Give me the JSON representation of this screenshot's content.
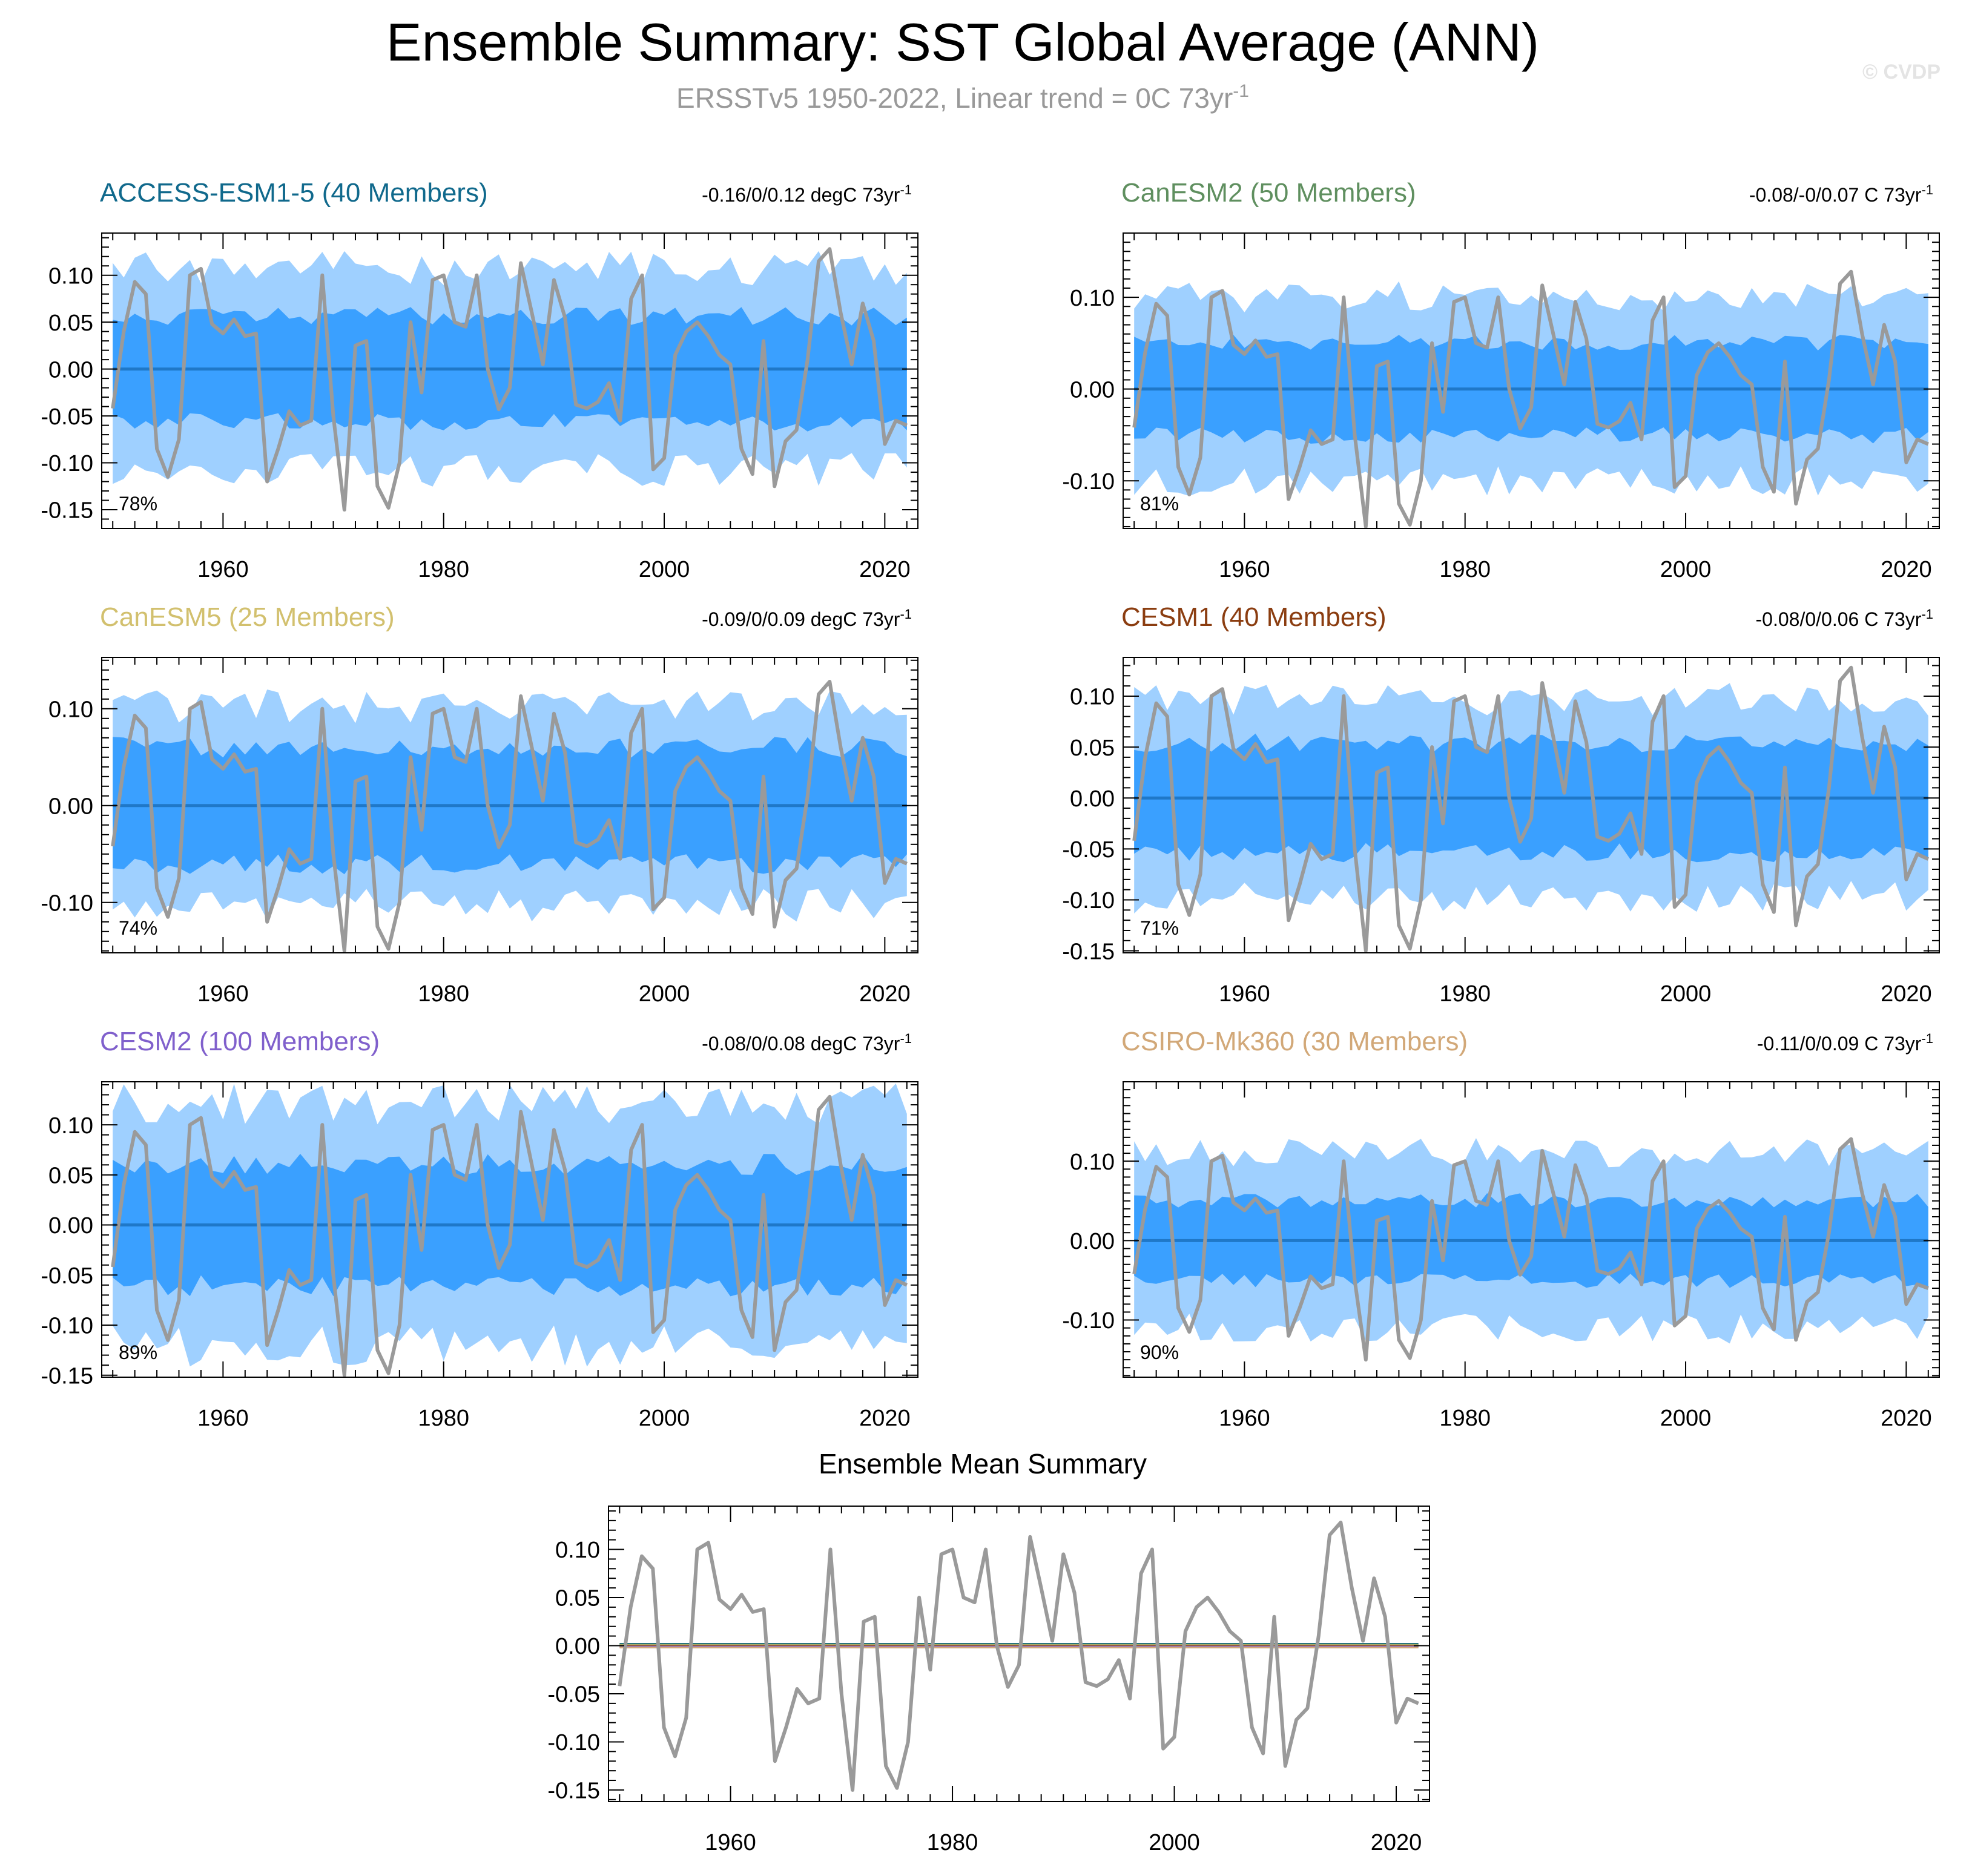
{
  "title": "Ensemble Summary: SST Global Average (ANN)",
  "subtitle_main": "ERSSTv5 1950-2022, Linear trend = 0C 73yr",
  "subtitle_sup": "-1",
  "watermark": "© CVDP",
  "colors": {
    "outer_band": "#9fd0ff",
    "inner_band": "#3aa0ff",
    "mean_line": "#1f78c8",
    "obs_line": "#9a9a9a",
    "title": "#000000",
    "subtitle": "#999999"
  },
  "observations": {
    "name": "ERSSTv5",
    "years": [
      1950,
      1951,
      1952,
      1953,
      1954,
      1955,
      1956,
      1957,
      1958,
      1959,
      1960,
      1961,
      1962,
      1963,
      1964,
      1965,
      1966,
      1967,
      1968,
      1969,
      1970,
      1971,
      1972,
      1973,
      1974,
      1975,
      1976,
      1977,
      1978,
      1979,
      1980,
      1981,
      1982,
      1983,
      1984,
      1985,
      1986,
      1987,
      1988,
      1989,
      1990,
      1991,
      1992,
      1993,
      1994,
      1995,
      1996,
      1997,
      1998,
      1999,
      2000,
      2001,
      2002,
      2003,
      2004,
      2005,
      2006,
      2007,
      2008,
      2009,
      2010,
      2011,
      2012,
      2013,
      2014,
      2015,
      2016,
      2017,
      2018,
      2019,
      2020,
      2021,
      2022
    ],
    "values": [
      -0.042,
      0.04,
      0.093,
      0.08,
      -0.085,
      -0.115,
      -0.075,
      0.1,
      0.107,
      0.048,
      0.038,
      0.053,
      0.035,
      0.038,
      -0.12,
      -0.085,
      -0.045,
      -0.06,
      -0.055,
      0.1,
      -0.05,
      -0.15,
      0.025,
      0.03,
      -0.125,
      -0.148,
      -0.1,
      0.05,
      -0.025,
      0.095,
      0.1,
      0.05,
      0.045,
      0.1,
      0.0,
      -0.043,
      -0.02,
      0.113,
      0.06,
      0.005,
      0.095,
      0.055,
      -0.038,
      -0.042,
      -0.035,
      -0.015,
      -0.055,
      0.075,
      0.1,
      -0.107,
      -0.095,
      0.015,
      0.04,
      0.05,
      0.035,
      0.015,
      0.005,
      -0.085,
      -0.112,
      0.03,
      -0.125,
      -0.077,
      -0.065,
      0.01,
      0.115,
      0.128,
      0.06,
      0.005,
      0.07,
      0.03,
      -0.08,
      -0.055,
      -0.06
    ]
  },
  "panels": [
    {
      "id": "access-esm1-5",
      "label": "ACCESS-ESM1-5 (40 Members)",
      "color": "#10698c",
      "trend": "-0.16/0/0.12 degC 73yr",
      "trend_sup": "-1",
      "percent": "78%",
      "ylim": [
        -0.17,
        0.145
      ],
      "yticks": [
        0.1,
        0.05,
        0.0,
        -0.05,
        -0.1,
        -0.15
      ],
      "ytick_labels": [
        "0.10",
        "0.05",
        "0.00",
        "-0.05",
        "-0.10",
        "-0.15"
      ],
      "inner": 0.058,
      "outer": 0.105,
      "seed": 11
    },
    {
      "id": "canesm2",
      "label": "CanESM2 (50 Members)",
      "color": "#5f8f5f",
      "trend": "-0.08/-0/0.07 C 73yr",
      "trend_sup": "-1",
      "percent": "81%",
      "ylim": [
        -0.152,
        0.17
      ],
      "yticks": [
        0.1,
        0.0,
        -0.1
      ],
      "ytick_labels": [
        "0.10",
        "0.00",
        "-0.10"
      ],
      "inner": 0.052,
      "outer": 0.098,
      "seed": 23
    },
    {
      "id": "canesm5",
      "label": "CanESM5 (25 Members)",
      "color": "#d2c06e",
      "trend": "-0.09/0/0.09 degC 73yr",
      "trend_sup": "-1",
      "percent": "74%",
      "ylim": [
        -0.152,
        0.153
      ],
      "yticks": [
        0.1,
        0.0,
        -0.1
      ],
      "ytick_labels": [
        "0.10",
        "0.00",
        "-0.10"
      ],
      "inner": 0.062,
      "outer": 0.1,
      "seed": 37
    },
    {
      "id": "cesm1",
      "label": "CESM1 (40 Members)",
      "color": "#8b3d10",
      "trend": "-0.08/0/0.06 C 73yr",
      "trend_sup": "-1",
      "percent": "71%",
      "ylim": [
        -0.152,
        0.138
      ],
      "yticks": [
        0.1,
        0.05,
        0.0,
        -0.05,
        -0.1,
        -0.15
      ],
      "ytick_labels": [
        "0.10",
        "0.05",
        "0.00",
        "-0.05",
        "-0.10",
        "-0.15"
      ],
      "inner": 0.055,
      "outer": 0.095,
      "seed": 41
    },
    {
      "id": "cesm2",
      "label": "CESM2 (100 Members)",
      "color": "#8060cc",
      "trend": "-0.08/0/0.08 degC 73yr",
      "trend_sup": "-1",
      "percent": "89%",
      "ylim": [
        -0.152,
        0.143
      ],
      "yticks": [
        0.1,
        0.05,
        0.0,
        -0.05,
        -0.1,
        -0.15
      ],
      "ytick_labels": [
        "0.10",
        "0.05",
        "0.00",
        "-0.05",
        "-0.10",
        "-0.15"
      ],
      "inner": 0.062,
      "outer": 0.118,
      "seed": 53
    },
    {
      "id": "csiro-mk360",
      "label": "CSIRO-Mk360 (30 Members)",
      "color": "#d2a878",
      "trend": "-0.11/0/0.09 C 73yr",
      "trend_sup": "-1",
      "percent": "90%",
      "ylim": [
        -0.172,
        0.2
      ],
      "yticks": [
        0.1,
        0.0,
        -0.1
      ],
      "ytick_labels": [
        "0.10",
        "0.00",
        "-0.10"
      ],
      "inner": 0.052,
      "outer": 0.108,
      "seed": 67
    }
  ],
  "ensemble_mean": {
    "title": "Ensemble Mean Summary",
    "ylim": [
      -0.162,
      0.145
    ],
    "yticks": [
      0.1,
      0.05,
      0.0,
      -0.05,
      -0.1,
      -0.15
    ],
    "ytick_labels": [
      "0.10",
      "0.05",
      "0.00",
      "-0.05",
      "-0.10",
      "-0.15"
    ],
    "line_colors": [
      "#10698c",
      "#5f8f5f",
      "#d2c06e",
      "#8b3d10",
      "#8060cc",
      "#d2a878"
    ]
  },
  "xaxis": {
    "xlim": [
      1949,
      2023
    ],
    "ticks": [
      1960,
      1980,
      2000,
      2020
    ],
    "tick_labels": [
      "1960",
      "1980",
      "2000",
      "2020"
    ]
  },
  "chart_data": {
    "type": "area",
    "title": "Ensemble Summary: SST Global Average (ANN)",
    "subtitle": "ERSSTv5 1950-2022, Linear trend = 0C 73yr-1",
    "x_range": [
      1950,
      2022
    ],
    "series": [
      {
        "name": "ACCESS-ESM1-5 (40 Members)",
        "trend_range": "-0.16/0/0.12 degC 73yr-1",
        "obs_within_spread": "78%"
      },
      {
        "name": "CanESM2 (50 Members)",
        "trend_range": "-0.08/-0/0.07 C 73yr-1",
        "obs_within_spread": "81%"
      },
      {
        "name": "CanESM5 (25 Members)",
        "trend_range": "-0.09/0/0.09 degC 73yr-1",
        "obs_within_spread": "74%"
      },
      {
        "name": "CESM1 (40 Members)",
        "trend_range": "-0.08/0/0.06 C 73yr-1",
        "obs_within_spread": "71%"
      },
      {
        "name": "CESM2 (100 Members)",
        "trend_range": "-0.08/0/0.08 degC 73yr-1",
        "obs_within_spread": "89%"
      },
      {
        "name": "CSIRO-Mk360 (30 Members)",
        "trend_range": "-0.11/0/0.09 C 73yr-1",
        "obs_within_spread": "90%"
      }
    ],
    "observation_series": "ERSSTv5 (see observations.values)",
    "ensemble_mean_values": 0.0
  }
}
